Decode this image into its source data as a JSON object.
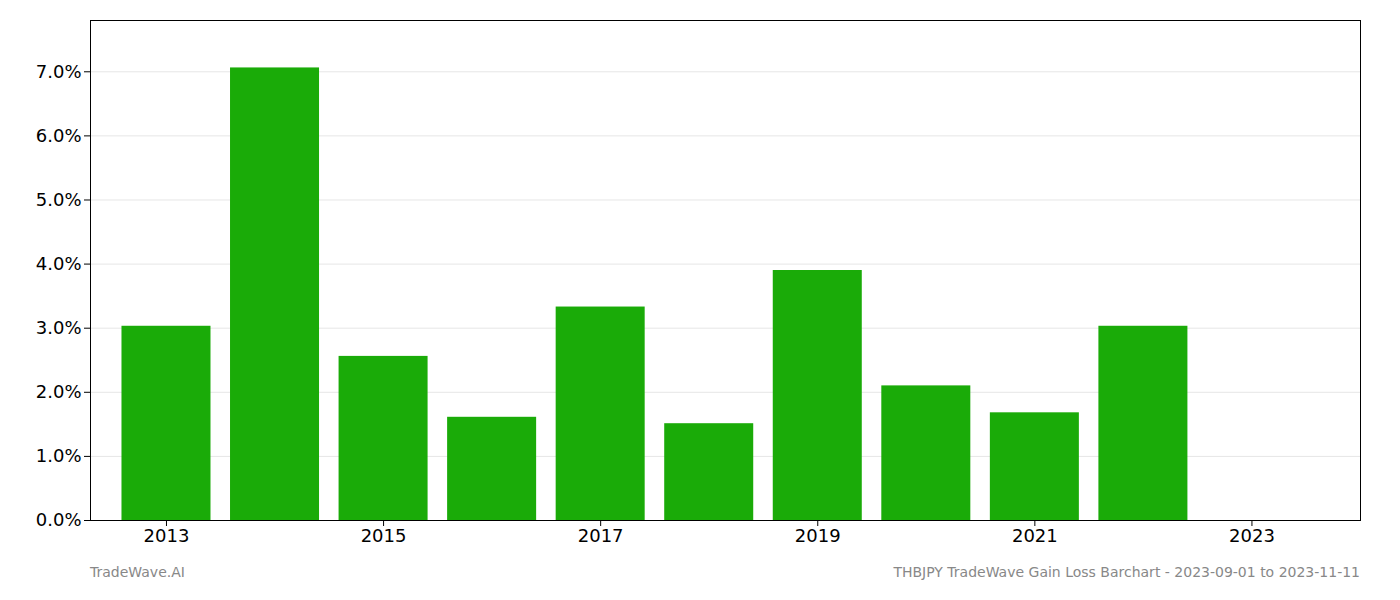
{
  "chart_data": {
    "type": "bar",
    "x": [
      2013,
      2014,
      2015,
      2016,
      2017,
      2018,
      2019,
      2020,
      2021,
      2022,
      2023
    ],
    "values": [
      0.0303,
      0.0706,
      0.0256,
      0.0161,
      0.0333,
      0.0151,
      0.039,
      0.021,
      0.0168,
      0.0303,
      0.0
    ],
    "color": "#1aab08",
    "xlim": [
      2012.3,
      2024.0
    ],
    "xticks": [
      2013,
      2015,
      2017,
      2019,
      2021,
      2023
    ],
    "ylim": [
      0.0,
      0.078
    ],
    "yticks": [
      {
        "value": 0.0,
        "label": "0.0%"
      },
      {
        "value": 0.01,
        "label": "1.0%"
      },
      {
        "value": 0.02,
        "label": "2.0%"
      },
      {
        "value": 0.03,
        "label": "3.0%"
      },
      {
        "value": 0.04,
        "label": "4.0%"
      },
      {
        "value": 0.05,
        "label": "5.0%"
      },
      {
        "value": 0.06,
        "label": "6.0%"
      },
      {
        "value": 0.07,
        "label": "7.0%"
      }
    ],
    "grid": true,
    "annotations": [
      "TradeWave.AI",
      "THBJPY TradeWave Gain Loss Barchart - 2023-09-01 to 2023-11-11"
    ]
  }
}
